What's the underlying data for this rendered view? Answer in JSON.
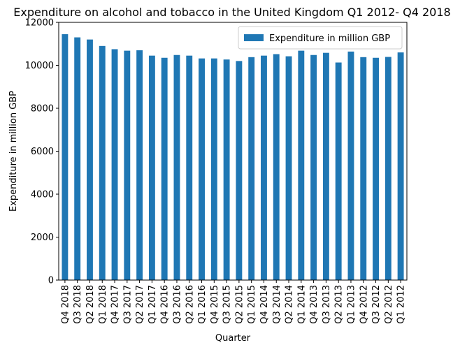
{
  "chart_data": {
    "type": "bar",
    "title": "Expenditure on alcohol and tobacco in the United Kingdom Q1 2012- Q4 2018",
    "xlabel": "Quarter",
    "ylabel": "Expenditure in million GBP",
    "ylim": [
      0,
      12000
    ],
    "yticks": [
      0,
      2000,
      4000,
      6000,
      8000,
      10000,
      12000
    ],
    "legend_position": "top-right",
    "grid": false,
    "categories": [
      "Q4 2018",
      "Q3 2018",
      "Q2 2018",
      "Q1 2018",
      "Q4 2017",
      "Q3 2017",
      "Q2 2017",
      "Q1 2017",
      "Q4 2016",
      "Q3 2016",
      "Q2 2016",
      "Q1 2016",
      "Q4 2015",
      "Q3 2015",
      "Q2 2015",
      "Q1 2015",
      "Q4 2014",
      "Q3 2014",
      "Q2 2014",
      "Q1 2014",
      "Q4 2013",
      "Q3 2013",
      "Q2 2013",
      "Q1 2013",
      "Q4 2012",
      "Q3 2012",
      "Q2 2012",
      "Q1 2012"
    ],
    "series": [
      {
        "name": "Expenditure in million GBP",
        "color": "#1f77b4",
        "values": [
          11450,
          11300,
          11200,
          10900,
          10750,
          10680,
          10700,
          10450,
          10350,
          10480,
          10450,
          10320,
          10320,
          10270,
          10200,
          10380,
          10450,
          10520,
          10420,
          10680,
          10480,
          10580,
          10130,
          10640,
          10380,
          10350,
          10390,
          10600
        ]
      }
    ]
  }
}
